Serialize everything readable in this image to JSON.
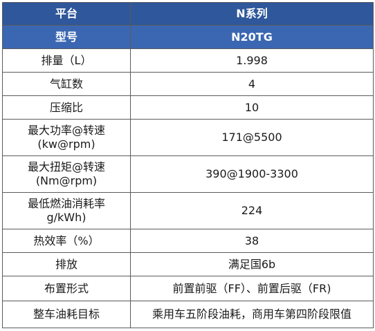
{
  "header": {
    "col1": "平台",
    "col2": "N系列"
  },
  "model": {
    "label": "型号",
    "value": "N20TG"
  },
  "rows": [
    {
      "label": "排量（L）",
      "value": "1.998"
    },
    {
      "label": "气缸数",
      "value": "4"
    },
    {
      "label": "压缩比",
      "value": "10"
    },
    {
      "label_line1": "最大功率@转速",
      "label_line2": "(kw@rpm)",
      "value": "171@5500"
    },
    {
      "label_line1": "最大扭矩@转速",
      "label_line2": "(Nm@rpm)",
      "value": "390@1900-3300"
    },
    {
      "label_line1": "最低燃油消耗率",
      "label_line2": "g/kWh)",
      "value": "224"
    },
    {
      "label": "热效率（%）",
      "value": "38"
    },
    {
      "label": "排放",
      "value": "满足国6b"
    },
    {
      "label": "布置形式",
      "value": "前置前驱（FF）、前置后驱（FR)"
    },
    {
      "label": "整车油耗目标",
      "value": "乘用车五阶段油耗，商用车第四阶段限值"
    }
  ],
  "colors": {
    "header_bg": "#2f579b",
    "subheader_bg": "#3b67b2",
    "header_text": "#ffffff",
    "border": "#5a5a5a"
  }
}
